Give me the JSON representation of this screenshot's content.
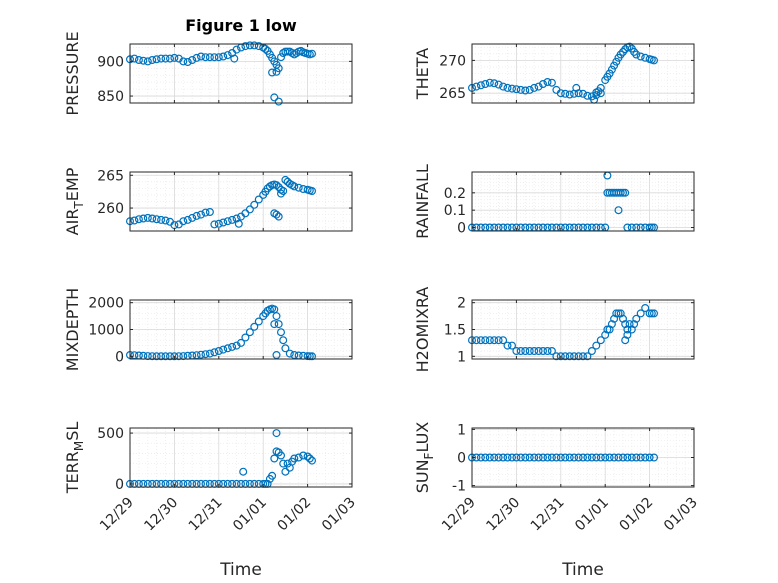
{
  "figure": {
    "title": "Figure 1 low"
  },
  "style": {
    "marker_color": "#0072BD",
    "axis_color": "#262626",
    "grid_color": "#d9d9d9",
    "background": "#ffffff"
  },
  "chart_data": [
    {
      "type": "scatter",
      "title": "Figure 1 low",
      "ylabel": "PRESSURE",
      "xlabel": "",
      "grid": true,
      "xlim": [
        0,
        5
      ],
      "ylim": [
        840,
        925
      ],
      "yticks": [
        850,
        900
      ],
      "ytick_labels": [
        "850",
        "900"
      ],
      "xtick_labels": [],
      "x": [
        0.0,
        0.1,
        0.2,
        0.3,
        0.4,
        0.5,
        0.6,
        0.7,
        0.8,
        0.9,
        1.0,
        1.1,
        1.2,
        1.3,
        1.4,
        1.5,
        1.6,
        1.7,
        1.8,
        1.9,
        2.0,
        2.1,
        2.2,
        2.3,
        2.4,
        2.5,
        2.6,
        2.7,
        2.8,
        2.9,
        3.0,
        3.05,
        3.1,
        3.15,
        3.2,
        3.25,
        3.3,
        3.35,
        3.4,
        3.45,
        3.5,
        3.55,
        3.6,
        3.65,
        3.7,
        3.75,
        3.8,
        3.85,
        3.9,
        3.95,
        4.0,
        4.05,
        4.1,
        2.35,
        3.2,
        3.25,
        3.35,
        3.3
      ],
      "y": [
        903,
        904,
        902,
        901,
        900,
        902,
        903,
        904,
        904,
        904,
        905,
        904,
        900,
        899,
        902,
        905,
        907,
        906,
        906,
        906,
        906,
        907,
        909,
        912,
        917,
        920,
        922,
        923,
        923,
        922,
        920,
        918,
        915,
        910,
        905,
        900,
        895,
        890,
        906,
        912,
        914,
        914,
        914,
        912,
        910,
        912,
        914,
        915,
        913,
        912,
        911,
        910,
        911,
        904,
        884,
        848,
        842,
        885
      ],
      "series_color": "#0072BD"
    },
    {
      "type": "scatter",
      "title": "",
      "ylabel": "THETA",
      "xlabel": "",
      "grid": true,
      "xlim": [
        0,
        5
      ],
      "ylim": [
        263.5,
        272.5
      ],
      "yticks": [
        265,
        270
      ],
      "ytick_labels": [
        "265",
        "270"
      ],
      "xtick_labels": [],
      "x": [
        0.0,
        0.1,
        0.2,
        0.3,
        0.4,
        0.5,
        0.6,
        0.7,
        0.8,
        0.9,
        1.0,
        1.1,
        1.2,
        1.3,
        1.4,
        1.5,
        1.6,
        1.7,
        1.8,
        1.9,
        2.0,
        2.1,
        2.2,
        2.3,
        2.4,
        2.5,
        2.6,
        2.7,
        2.8,
        2.9,
        3.0,
        3.05,
        3.1,
        3.15,
        3.2,
        3.25,
        3.3,
        3.35,
        3.4,
        3.45,
        3.5,
        3.55,
        3.6,
        3.65,
        3.7,
        3.8,
        3.9,
        4.0,
        4.05,
        4.1,
        2.35,
        2.75,
        2.8,
        2.85,
        2.9
      ],
      "y": [
        265.8,
        266.0,
        266.2,
        266.4,
        266.6,
        266.5,
        266.3,
        266.0,
        265.8,
        265.7,
        265.6,
        265.5,
        265.4,
        265.5,
        265.8,
        266.0,
        266.4,
        266.7,
        266.6,
        265.5,
        265.0,
        264.9,
        264.8,
        264.9,
        265.0,
        264.9,
        264.6,
        264.5,
        264.7,
        265.8,
        267.0,
        267.5,
        268.0,
        268.6,
        269.2,
        269.8,
        270.4,
        270.9,
        271.3,
        271.7,
        272.0,
        272.1,
        271.8,
        271.3,
        270.9,
        270.6,
        270.4,
        270.2,
        270.1,
        270.0,
        265.8,
        264.0,
        265.1,
        265.3,
        265.0
      ],
      "series_color": "#0072BD"
    },
    {
      "type": "scatter",
      "title": "",
      "ylabel": "AIR_TEMP",
      "xlabel": "",
      "grid": true,
      "xlim": [
        0,
        5
      ],
      "ylim": [
        256.5,
        265.5
      ],
      "yticks": [
        260,
        265
      ],
      "ytick_labels": [
        "260",
        "265"
      ],
      "xtick_labels": [],
      "x": [
        0.0,
        0.1,
        0.2,
        0.3,
        0.4,
        0.5,
        0.6,
        0.7,
        0.8,
        0.9,
        1.0,
        1.1,
        1.2,
        1.3,
        1.4,
        1.5,
        1.6,
        1.7,
        1.8,
        1.9,
        2.0,
        2.1,
        2.2,
        2.3,
        2.4,
        2.5,
        2.6,
        2.7,
        2.8,
        2.9,
        3.0,
        3.05,
        3.1,
        3.15,
        3.2,
        3.25,
        3.3,
        3.35,
        3.4,
        3.45,
        3.5,
        3.55,
        3.6,
        3.65,
        3.7,
        3.8,
        3.9,
        4.0,
        4.05,
        4.1,
        2.45,
        3.25,
        3.3,
        3.35,
        3.4
      ],
      "y": [
        258.0,
        258.1,
        258.3,
        258.4,
        258.5,
        258.4,
        258.3,
        258.2,
        258.1,
        257.9,
        257.4,
        257.5,
        258.0,
        258.2,
        258.5,
        258.8,
        259.0,
        259.3,
        259.4,
        257.5,
        257.6,
        257.8,
        258.0,
        258.2,
        258.4,
        258.7,
        259.2,
        259.8,
        260.5,
        261.3,
        262.0,
        262.5,
        263.0,
        263.3,
        263.5,
        263.6,
        263.5,
        263.2,
        262.8,
        262.6,
        264.3,
        264.0,
        263.7,
        263.5,
        263.3,
        263.1,
        262.9,
        262.8,
        262.7,
        262.6,
        257.6,
        259.2,
        259.0,
        258.7,
        262.2
      ],
      "series_color": "#0072BD"
    },
    {
      "type": "scatter",
      "title": "",
      "ylabel": "RAINFALL",
      "xlabel": "",
      "grid": true,
      "xlim": [
        0,
        5
      ],
      "ylim": [
        -0.02,
        0.32
      ],
      "yticks": [
        0,
        0.1,
        0.2
      ],
      "ytick_labels": [
        "0",
        "0.1",
        "0.2"
      ],
      "xtick_labels": [],
      "x": [
        0.0,
        0.1,
        0.2,
        0.3,
        0.4,
        0.5,
        0.6,
        0.7,
        0.8,
        0.9,
        1.0,
        1.1,
        1.2,
        1.3,
        1.4,
        1.5,
        1.6,
        1.7,
        1.8,
        1.9,
        2.0,
        2.1,
        2.2,
        2.3,
        2.4,
        2.5,
        2.6,
        2.7,
        2.8,
        2.9,
        3.0,
        3.05,
        3.1,
        3.15,
        3.2,
        3.25,
        3.3,
        3.35,
        3.4,
        3.45,
        3.5,
        3.6,
        3.7,
        3.8,
        3.9,
        4.0,
        4.05,
        4.1,
        3.05,
        3.3
      ],
      "y": [
        0,
        0,
        0,
        0,
        0,
        0,
        0,
        0,
        0,
        0,
        0,
        0,
        0,
        0,
        0,
        0,
        0,
        0,
        0,
        0,
        0,
        0,
        0,
        0,
        0,
        0,
        0,
        0,
        0,
        0,
        0,
        0.2,
        0.2,
        0.2,
        0.2,
        0.2,
        0.2,
        0.2,
        0.2,
        0.2,
        0,
        0,
        0,
        0,
        0,
        0,
        0,
        0,
        0.3,
        0.1
      ],
      "series_color": "#0072BD"
    },
    {
      "type": "scatter",
      "title": "",
      "ylabel": "MIXDEPTH",
      "xlabel": "",
      "grid": true,
      "xlim": [
        0,
        5
      ],
      "ylim": [
        -100,
        2100
      ],
      "yticks": [
        0,
        1000,
        2000
      ],
      "ytick_labels": [
        "0",
        "1000",
        "2000"
      ],
      "xtick_labels": [],
      "x": [
        0.0,
        0.1,
        0.2,
        0.3,
        0.4,
        0.5,
        0.6,
        0.7,
        0.8,
        0.9,
        1.0,
        1.1,
        1.2,
        1.3,
        1.4,
        1.5,
        1.6,
        1.7,
        1.8,
        1.9,
        2.0,
        2.1,
        2.2,
        2.3,
        2.4,
        2.5,
        2.6,
        2.7,
        2.8,
        2.9,
        3.0,
        3.05,
        3.1,
        3.15,
        3.2,
        3.25,
        3.3,
        3.35,
        3.4,
        3.45,
        3.5,
        3.6,
        3.7,
        3.8,
        3.9,
        4.0,
        4.05,
        4.1,
        3.25,
        3.3
      ],
      "y": [
        50,
        40,
        30,
        20,
        10,
        5,
        0,
        0,
        0,
        0,
        0,
        5,
        10,
        20,
        30,
        40,
        60,
        80,
        100,
        150,
        200,
        250,
        300,
        350,
        400,
        500,
        700,
        900,
        1100,
        1300,
        1500,
        1600,
        1700,
        1750,
        1780,
        1750,
        1500,
        1200,
        900,
        600,
        300,
        100,
        50,
        30,
        20,
        10,
        5,
        0,
        1200,
        50
      ],
      "series_color": "#0072BD"
    },
    {
      "type": "scatter",
      "title": "",
      "ylabel": "H2OMIXRA",
      "xlabel": "",
      "grid": true,
      "xlim": [
        0,
        5
      ],
      "ylim": [
        0.95,
        2.05
      ],
      "yticks": [
        1,
        1.5,
        2
      ],
      "ytick_labels": [
        "1",
        "1.5",
        "2"
      ],
      "xtick_labels": [],
      "x": [
        0.0,
        0.1,
        0.2,
        0.3,
        0.4,
        0.5,
        0.6,
        0.7,
        0.8,
        0.9,
        1.0,
        1.1,
        1.2,
        1.3,
        1.4,
        1.5,
        1.6,
        1.7,
        1.8,
        1.9,
        2.0,
        2.1,
        2.2,
        2.3,
        2.4,
        2.5,
        2.6,
        2.7,
        2.8,
        2.9,
        3.0,
        3.05,
        3.1,
        3.15,
        3.2,
        3.25,
        3.3,
        3.35,
        3.4,
        3.45,
        3.5,
        3.55,
        3.6,
        3.65,
        3.7,
        3.8,
        3.9,
        4.0,
        4.05,
        4.1,
        3.45,
        3.5
      ],
      "y": [
        1.3,
        1.3,
        1.3,
        1.3,
        1.3,
        1.3,
        1.3,
        1.3,
        1.2,
        1.2,
        1.1,
        1.1,
        1.1,
        1.1,
        1.1,
        1.1,
        1.1,
        1.1,
        1.1,
        1.0,
        1.0,
        1.0,
        1.0,
        1.0,
        1.0,
        1.0,
        1.0,
        1.1,
        1.2,
        1.3,
        1.4,
        1.5,
        1.5,
        1.6,
        1.7,
        1.8,
        1.8,
        1.8,
        1.7,
        1.6,
        1.5,
        1.6,
        1.5,
        1.6,
        1.7,
        1.8,
        1.9,
        1.8,
        1.8,
        1.8,
        1.3,
        1.4
      ],
      "series_color": "#0072BD"
    },
    {
      "type": "scatter",
      "title": "",
      "ylabel": "TERR_MSL",
      "xlabel": "Time",
      "grid": true,
      "xlim": [
        0,
        5
      ],
      "ylim": [
        -30,
        550
      ],
      "yticks": [
        0,
        500
      ],
      "ytick_labels": [
        "0",
        "500"
      ],
      "xticks": [
        0,
        1,
        2,
        3,
        4,
        5
      ],
      "xtick_labels": [
        "12/29",
        "12/30",
        "12/31",
        "01/01",
        "01/02",
        "01/03"
      ],
      "x": [
        0.0,
        0.1,
        0.2,
        0.3,
        0.4,
        0.5,
        0.6,
        0.7,
        0.8,
        0.9,
        1.0,
        1.1,
        1.2,
        1.3,
        1.4,
        1.5,
        1.6,
        1.7,
        1.8,
        1.9,
        2.0,
        2.1,
        2.2,
        2.3,
        2.4,
        2.5,
        2.6,
        2.7,
        2.8,
        2.9,
        3.0,
        3.05,
        3.1,
        3.15,
        3.2,
        3.25,
        3.3,
        3.35,
        3.4,
        3.45,
        3.5,
        3.55,
        3.6,
        3.65,
        3.7,
        3.8,
        3.9,
        4.0,
        4.05,
        4.1,
        2.55,
        3.3
      ],
      "y": [
        0,
        0,
        0,
        0,
        0,
        0,
        0,
        0,
        0,
        0,
        0,
        0,
        0,
        0,
        0,
        0,
        0,
        0,
        0,
        0,
        0,
        0,
        0,
        0,
        0,
        0,
        0,
        0,
        0,
        0,
        0,
        0,
        0,
        50,
        80,
        250,
        320,
        310,
        280,
        200,
        120,
        200,
        160,
        220,
        250,
        260,
        280,
        270,
        250,
        230,
        120,
        500
      ],
      "series_color": "#0072BD"
    },
    {
      "type": "scatter",
      "title": "",
      "ylabel": "SUN_FLUX",
      "xlabel": "Time",
      "grid": true,
      "xlim": [
        0,
        5
      ],
      "ylim": [
        -1.05,
        1.05
      ],
      "yticks": [
        -1,
        0,
        1
      ],
      "ytick_labels": [
        "-1",
        "0",
        "1"
      ],
      "xticks": [
        0,
        1,
        2,
        3,
        4,
        5
      ],
      "xtick_labels": [
        "12/29",
        "12/30",
        "12/31",
        "01/01",
        "01/02",
        "01/03"
      ],
      "x": [
        0.0,
        0.1,
        0.2,
        0.3,
        0.4,
        0.5,
        0.6,
        0.7,
        0.8,
        0.9,
        1.0,
        1.1,
        1.2,
        1.3,
        1.4,
        1.5,
        1.6,
        1.7,
        1.8,
        1.9,
        2.0,
        2.1,
        2.2,
        2.3,
        2.4,
        2.5,
        2.6,
        2.7,
        2.8,
        2.9,
        3.0,
        3.1,
        3.2,
        3.3,
        3.4,
        3.5,
        3.6,
        3.7,
        3.8,
        3.9,
        4.0,
        4.1
      ],
      "y": [
        0,
        0,
        0,
        0,
        0,
        0,
        0,
        0,
        0,
        0,
        0,
        0,
        0,
        0,
        0,
        0,
        0,
        0,
        0,
        0,
        0,
        0,
        0,
        0,
        0,
        0,
        0,
        0,
        0,
        0,
        0,
        0,
        0,
        0,
        0,
        0,
        0,
        0,
        0,
        0,
        0,
        0
      ],
      "series_color": "#0072BD"
    }
  ]
}
